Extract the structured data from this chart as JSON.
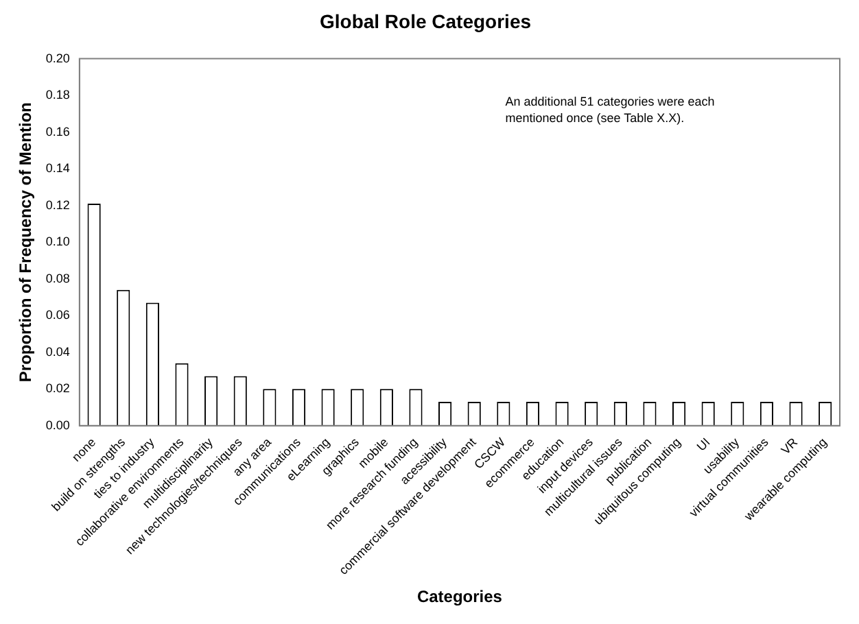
{
  "chart_data": {
    "type": "bar",
    "title": "Global Role Categories",
    "xlabel": "Categories",
    "ylabel": "Proportion of Frequency of Mention",
    "categories": [
      "none",
      "build on strengths",
      "ties to industry",
      "collaborative environments",
      "multidisciplinarity",
      "new technologies/techniques",
      "any area",
      "communications",
      "eLearning",
      "graphics",
      "mobile",
      "more research funding",
      "acessibility",
      "commercial software development",
      "CSCW",
      "ecommerce",
      "education",
      "input devices",
      "multicultural issues",
      "publication",
      "ubiquitous computing",
      "UI",
      "usability",
      "virtual communities",
      "VR",
      "wearable computing"
    ],
    "values": [
      0.121,
      0.074,
      0.067,
      0.034,
      0.027,
      0.027,
      0.02,
      0.02,
      0.02,
      0.02,
      0.02,
      0.02,
      0.013,
      0.013,
      0.013,
      0.013,
      0.013,
      0.013,
      0.013,
      0.013,
      0.013,
      0.013,
      0.013,
      0.013,
      0.013,
      0.013
    ],
    "color": "#ffffff",
    "ylim": [
      0,
      0.2
    ],
    "yticks": [
      {
        "value": 0,
        "label": "0.00"
      },
      {
        "value": 0.02,
        "label": "0.02"
      },
      {
        "value": 0.04,
        "label": "0.04"
      },
      {
        "value": 0.06,
        "label": "0.06"
      },
      {
        "value": 0.08,
        "label": "0.08"
      },
      {
        "value": 0.1,
        "label": "0.10"
      },
      {
        "value": 0.12,
        "label": "0.12"
      },
      {
        "value": 0.14,
        "label": "0.14"
      },
      {
        "value": 0.16,
        "label": "0.16"
      },
      {
        "value": 0.18,
        "label": "0.18"
      },
      {
        "value": 0.2,
        "label": "0.20"
      }
    ],
    "annotations": [
      "An additional 51 categories were each\nmentioned once (see Table X.X)."
    ],
    "grid": false,
    "legend": false
  }
}
